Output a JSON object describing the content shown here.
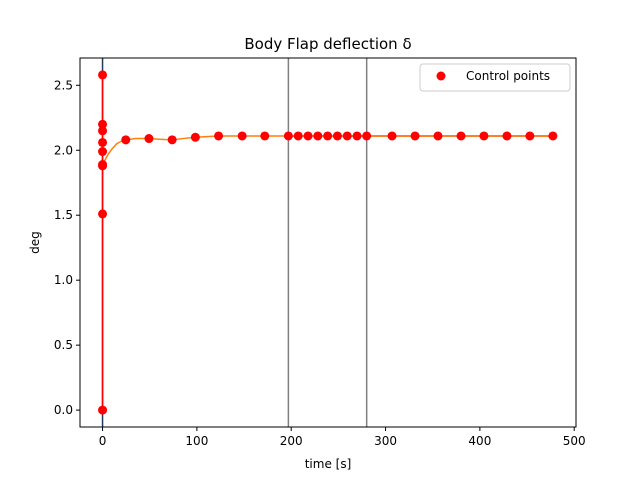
{
  "chart_data": {
    "type": "line",
    "title": "Body Flap deflection δ",
    "xlabel": "time [s]",
    "ylabel": "deg",
    "xlim": [
      -23.9,
      501.9
    ],
    "ylim": [
      -0.13,
      2.71
    ],
    "xticks": [
      0,
      100,
      200,
      300,
      400,
      500
    ],
    "yticks": [
      0.0,
      0.5,
      1.0,
      1.5,
      2.0,
      2.5
    ],
    "xtick_labels": [
      "0",
      "100",
      "200",
      "300",
      "400",
      "500"
    ],
    "ytick_labels": [
      "0.0",
      "0.5",
      "1.0",
      "1.5",
      "2.0",
      "2.5"
    ],
    "grid": false,
    "legend_position": "top-right",
    "legend": [
      {
        "label": "Control points",
        "color": "#ff0000",
        "marker": "circle"
      }
    ],
    "vertical_lines": [
      0,
      197,
      280
    ],
    "colors": {
      "control_points": "#ff0000",
      "curve": "#ff7f0e",
      "segment_line": "#1f3a5f",
      "vline": "#808080"
    },
    "series": [
      {
        "name": "Control points",
        "kind": "scatter",
        "points": [
          [
            0,
            0.0
          ],
          [
            0,
            1.51
          ],
          [
            0,
            1.88
          ],
          [
            0,
            1.89
          ],
          [
            0,
            1.99
          ],
          [
            0,
            2.06
          ],
          [
            0,
            2.15
          ],
          [
            0,
            2.2
          ],
          [
            0,
            2.58
          ],
          [
            24.6,
            2.08
          ],
          [
            49.2,
            2.09
          ],
          [
            73.8,
            2.08
          ],
          [
            98.4,
            2.1
          ],
          [
            123,
            2.11
          ],
          [
            148,
            2.11
          ],
          [
            172,
            2.11
          ],
          [
            197,
            2.11
          ],
          [
            207.4,
            2.11
          ],
          [
            217.8,
            2.11
          ],
          [
            228.2,
            2.11
          ],
          [
            238.6,
            2.11
          ],
          [
            249,
            2.11
          ],
          [
            259.4,
            2.11
          ],
          [
            269.8,
            2.11
          ],
          [
            280,
            2.11
          ],
          [
            306.9,
            2.11
          ],
          [
            331.3,
            2.11
          ],
          [
            355.6,
            2.11
          ],
          [
            380,
            2.11
          ],
          [
            404.3,
            2.11
          ],
          [
            428.7,
            2.11
          ],
          [
            453,
            2.11
          ],
          [
            477.4,
            2.11
          ]
        ]
      },
      {
        "kind": "line",
        "points": [
          [
            0,
            1.89
          ],
          [
            3,
            1.93
          ],
          [
            6,
            1.97
          ],
          [
            10,
            2.01
          ],
          [
            15,
            2.05
          ],
          [
            20,
            2.07
          ],
          [
            24.6,
            2.08
          ],
          [
            35,
            2.09
          ],
          [
            49.2,
            2.09
          ],
          [
            60,
            2.085
          ],
          [
            73.8,
            2.08
          ],
          [
            85,
            2.09
          ],
          [
            98.4,
            2.1
          ],
          [
            110,
            2.105
          ],
          [
            123,
            2.11
          ],
          [
            148,
            2.11
          ],
          [
            172,
            2.11
          ],
          [
            197,
            2.11
          ],
          [
            280,
            2.11
          ],
          [
            477.4,
            2.11
          ]
        ]
      }
    ]
  }
}
